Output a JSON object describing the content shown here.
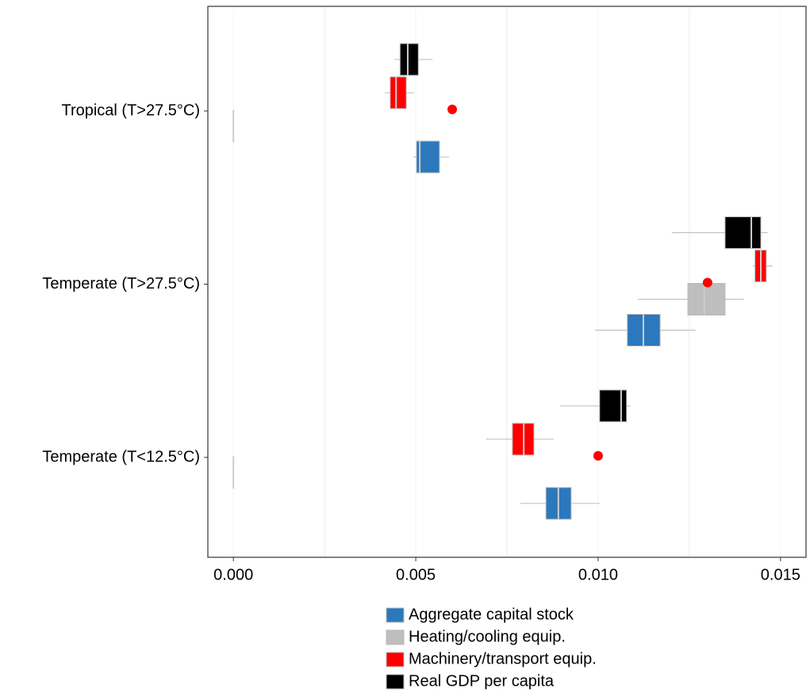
{
  "chart_data": {
    "type": "boxplot",
    "orientation": "horizontal",
    "categories": [
      "Tropical (T>27.5°C)",
      "Temperate (T>27.5°C)",
      "Temperate (T<12.5°C)"
    ],
    "xlim": [
      -0.0007,
      0.0157
    ],
    "xticks": [
      {
        "value": 0,
        "label": "0.000"
      },
      {
        "value": 0.005,
        "label": "0.005"
      },
      {
        "value": 0.01,
        "label": "0.010"
      },
      {
        "value": 0.015,
        "label": "0.015"
      }
    ],
    "xgrid_minor": [
      0.0025,
      0.0075,
      0.0125
    ],
    "grid": true,
    "legend": "bottom",
    "series": [
      {
        "name": "Aggregate capital stock",
        "color": "#2b78bd",
        "values": [
          {
            "min": 0.00493,
            "q1": 0.00502,
            "median": 0.00511,
            "q3": 0.00565,
            "max": 0.00591
          },
          {
            "min": 0.00991,
            "q1": 0.0108,
            "median": 0.01124,
            "q3": 0.0117,
            "max": 0.01267
          },
          {
            "min": 0.00787,
            "q1": 0.00857,
            "median": 0.00891,
            "q3": 0.00926,
            "max": 0.01004
          }
        ]
      },
      {
        "name": "Heating/cooling equip.",
        "color": "#bebebe",
        "values": [
          {
            "min": 0,
            "q1": 0,
            "median": 0,
            "q3": 0,
            "max": 0
          },
          {
            "min": 0.01109,
            "q1": 0.01246,
            "median": 0.01291,
            "q3": 0.01348,
            "max": 0.014
          },
          {
            "min": 0,
            "q1": 0,
            "median": 0,
            "q3": 0,
            "max": 0
          }
        ]
      },
      {
        "name": "Machinery/transport equip.",
        "color": "#ff0000",
        "values": [
          {
            "min": 0.00415,
            "q1": 0.0043,
            "median": 0.00446,
            "q3": 0.00474,
            "max": 0.00496
          },
          {
            "min": 0.01424,
            "q1": 0.0143,
            "median": 0.01446,
            "q3": 0.01461,
            "max": 0.01478
          },
          {
            "min": 0.00693,
            "q1": 0.00765,
            "median": 0.00796,
            "q3": 0.00824,
            "max": 0.00878
          }
        ]
      },
      {
        "name": "Real GDP per capita",
        "color": "#000000",
        "values": [
          {
            "min": 0.00441,
            "q1": 0.00457,
            "median": 0.00478,
            "q3": 0.00507,
            "max": 0.00546
          },
          {
            "min": 0.01202,
            "q1": 0.01348,
            "median": 0.0142,
            "q3": 0.01446,
            "max": 0.01465
          },
          {
            "min": 0.00896,
            "q1": 0.01004,
            "median": 0.01063,
            "q3": 0.01078,
            "max": 0.01089
          }
        ]
      }
    ],
    "points": {
      "color": "#ff0000",
      "values": [
        0.006,
        0.013,
        0.01
      ]
    }
  }
}
